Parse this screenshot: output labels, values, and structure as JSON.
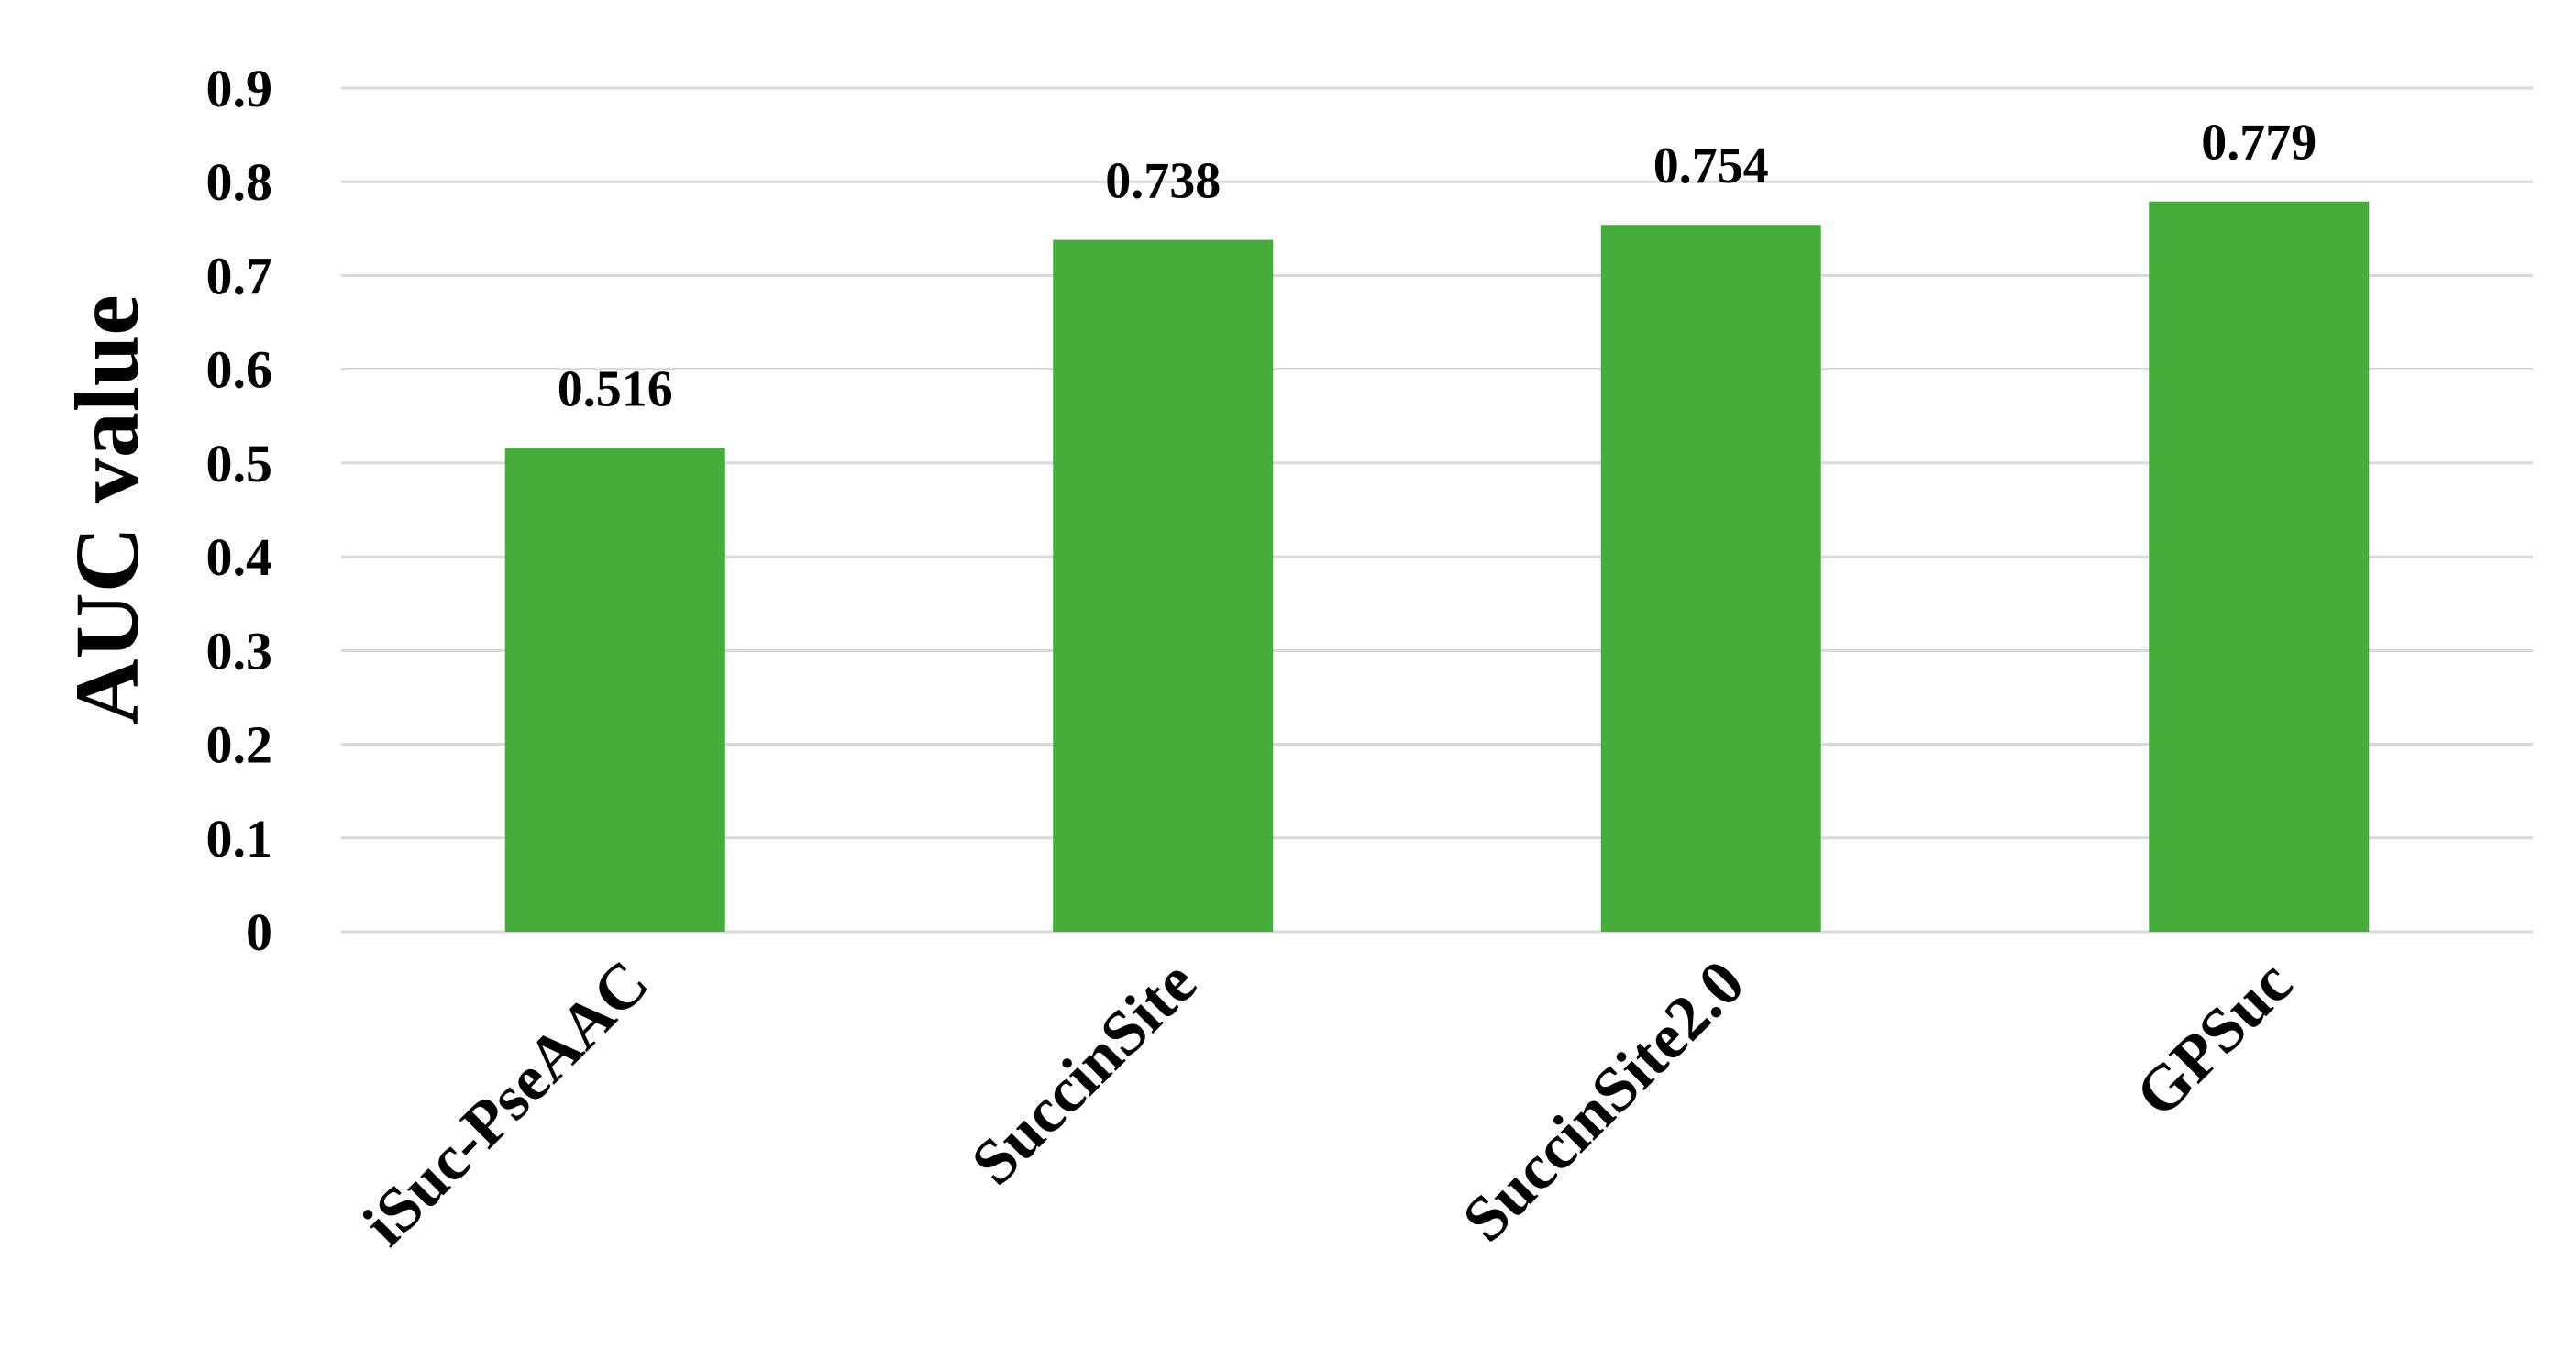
{
  "chart_data": {
    "type": "bar",
    "title": "",
    "xlabel": "",
    "ylabel": "AUC value",
    "categories": [
      "iSuc-PseAAC",
      "SuccinSite",
      "SuccinSite2.0",
      "GPSuc"
    ],
    "values": [
      0.516,
      0.738,
      0.754,
      0.779
    ],
    "data_labels": [
      "0.516",
      "0.738",
      "0.754",
      "0.779"
    ],
    "ylim": [
      0,
      0.9
    ],
    "y_ticks": [
      "0",
      "0.1",
      "0.2",
      "0.3",
      "0.4",
      "0.5",
      "0.6",
      "0.7",
      "0.8",
      "0.9"
    ],
    "grid": true,
    "legend": "none",
    "bar_color": "#44ad3c",
    "grid_color": "#d9d9d9"
  }
}
